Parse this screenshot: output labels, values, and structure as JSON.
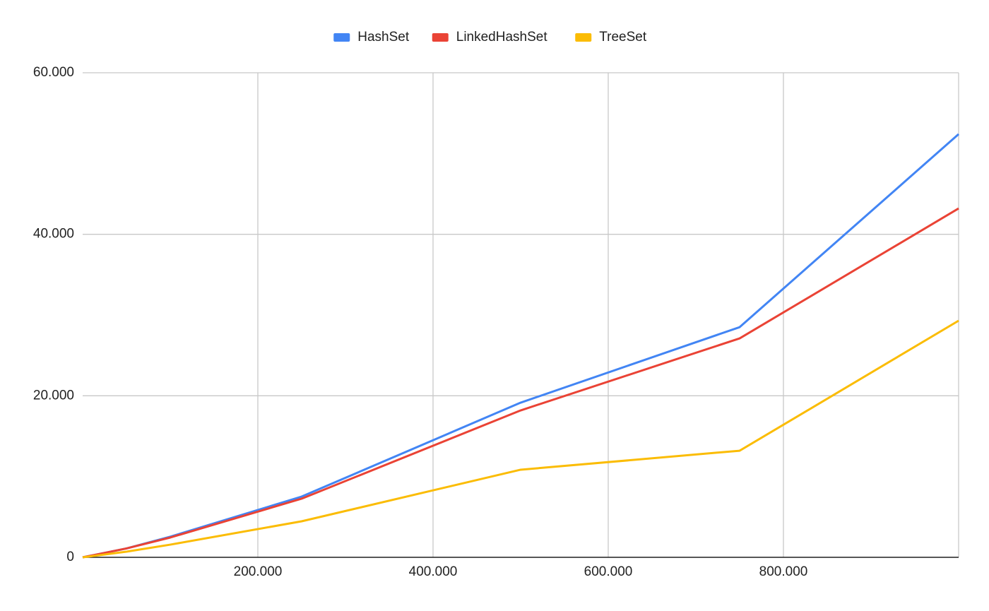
{
  "chart_data": {
    "type": "line",
    "x": [
      0,
      50000,
      100000,
      250000,
      500000,
      750000,
      1000000
    ],
    "series": [
      {
        "name": "HashSet",
        "color": "#4285f4",
        "values": [
          0,
          1100,
          2550,
          7520,
          19150,
          28500,
          52400
        ]
      },
      {
        "name": "LinkedHashSet",
        "color": "#ea4335",
        "values": [
          0,
          1100,
          2450,
          7260,
          18190,
          27110,
          43200
        ]
      },
      {
        "name": "TreeSet",
        "color": "#fbbc04",
        "values": [
          0,
          700,
          1570,
          4460,
          10850,
          13200,
          29300
        ]
      }
    ],
    "xlim": [
      0,
      1000000
    ],
    "xticks": [
      {
        "value": 200000,
        "label": "200.000"
      },
      {
        "value": 400000,
        "label": "400.000"
      },
      {
        "value": 600000,
        "label": "600.000"
      },
      {
        "value": 800000,
        "label": "800.000"
      }
    ],
    "ylim": [
      0,
      60000
    ],
    "yticks": [
      0,
      {
        "value": 20000,
        "label": "20.000"
      },
      {
        "value": 40000,
        "label": "40.000"
      },
      {
        "value": 60000,
        "label": "60.000"
      }
    ],
    "grid": true,
    "legend": "top"
  }
}
